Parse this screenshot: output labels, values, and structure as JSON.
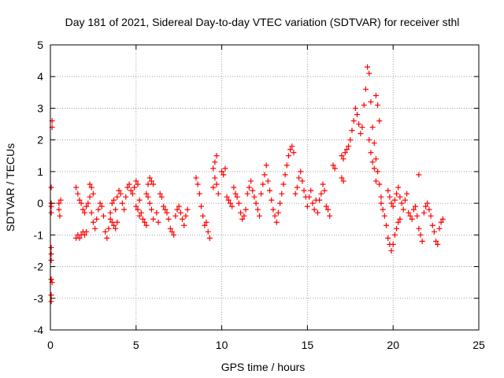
{
  "chart_data": {
    "type": "scatter",
    "title": "Day 181 of 2021, Sidereal Day-to-day VTEC variation (SDTVAR) for receiver sthl",
    "xlabel": "GPS time / hours",
    "ylabel": "SDTVAR / TECUs",
    "xlim": [
      0,
      25
    ],
    "ylim": [
      -4,
      5
    ],
    "xticks": [
      0,
      5,
      10,
      15,
      20,
      25
    ],
    "yticks": [
      -4,
      -3,
      -2,
      -1,
      0,
      1,
      2,
      3,
      4,
      5
    ],
    "xtick_labels": [
      "0",
      "5",
      "10",
      "15",
      "20",
      "25"
    ],
    "ytick_labels": [
      "-4",
      "-3",
      "-2",
      "-1",
      "0",
      "1",
      "2",
      "3",
      "4",
      "5"
    ],
    "grid": true,
    "marker": "plus",
    "color": "#ff0000",
    "series": [
      {
        "name": "sthl",
        "points": [
          [
            0.05,
            0.5
          ],
          [
            0.05,
            0.0
          ],
          [
            0.05,
            -0.1
          ],
          [
            0.05,
            -0.3
          ],
          [
            0.05,
            -1.4
          ],
          [
            0.05,
            -1.6
          ],
          [
            0.05,
            -1.8
          ],
          [
            0.05,
            -2.4
          ],
          [
            0.05,
            -2.9
          ],
          [
            0.05,
            -3.1
          ],
          [
            0.1,
            2.6
          ],
          [
            0.1,
            2.4
          ],
          [
            0.1,
            -2.5
          ],
          [
            0.5,
            0.0
          ],
          [
            0.5,
            -0.2
          ],
          [
            0.55,
            -0.4
          ],
          [
            0.6,
            0.1
          ],
          [
            1.5,
            -1.1
          ],
          [
            1.6,
            -1.0
          ],
          [
            1.7,
            -1.1
          ],
          [
            1.8,
            -1.0
          ],
          [
            1.9,
            -0.9
          ],
          [
            2.0,
            -1.0
          ],
          [
            2.1,
            -0.9
          ],
          [
            1.5,
            0.5
          ],
          [
            1.6,
            0.3
          ],
          [
            1.7,
            0.1
          ],
          [
            1.8,
            0.0
          ],
          [
            1.9,
            -0.2
          ],
          [
            2.0,
            -0.3
          ],
          [
            2.1,
            -0.1
          ],
          [
            2.2,
            0.0
          ],
          [
            2.3,
            0.2
          ],
          [
            2.4,
            -0.3
          ],
          [
            2.5,
            -0.6
          ],
          [
            2.6,
            -0.8
          ],
          [
            2.7,
            -0.5
          ],
          [
            2.3,
            0.6
          ],
          [
            2.4,
            0.5
          ],
          [
            2.5,
            0.3
          ],
          [
            2.8,
            -0.2
          ],
          [
            2.9,
            0.0
          ],
          [
            3.0,
            -0.1
          ],
          [
            3.1,
            -0.4
          ],
          [
            3.2,
            -0.9
          ],
          [
            3.3,
            -1.1
          ],
          [
            3.4,
            -0.8
          ],
          [
            3.5,
            -0.3
          ],
          [
            3.6,
            0.0
          ],
          [
            3.7,
            0.1
          ],
          [
            3.8,
            -0.2
          ],
          [
            3.9,
            0.2
          ],
          [
            4.0,
            0.4
          ],
          [
            4.1,
            0.3
          ],
          [
            3.5,
            -0.5
          ],
          [
            3.6,
            -0.6
          ],
          [
            3.7,
            -0.7
          ],
          [
            3.8,
            -0.8
          ],
          [
            3.9,
            -0.6
          ],
          [
            4.2,
            0.0
          ],
          [
            4.3,
            -0.2
          ],
          [
            4.4,
            0.2
          ],
          [
            4.5,
            0.5
          ],
          [
            4.6,
            0.6
          ],
          [
            4.7,
            0.4
          ],
          [
            4.8,
            0.3
          ],
          [
            4.9,
            0.5
          ],
          [
            5.0,
            0.7
          ],
          [
            5.1,
            0.6
          ],
          [
            5.2,
            0.1
          ],
          [
            5.3,
            -0.3
          ],
          [
            5.4,
            -0.5
          ],
          [
            5.5,
            -0.6
          ],
          [
            5.6,
            -0.7
          ],
          [
            5.0,
            -0.1
          ],
          [
            5.1,
            -0.2
          ],
          [
            5.2,
            -0.4
          ],
          [
            5.6,
            0.3
          ],
          [
            5.7,
            0.2
          ],
          [
            5.8,
            0.0
          ],
          [
            5.9,
            -0.2
          ],
          [
            6.0,
            -0.5
          ],
          [
            5.7,
            0.6
          ],
          [
            5.8,
            0.8
          ],
          [
            5.9,
            0.7
          ],
          [
            6.0,
            0.6
          ],
          [
            6.2,
            -0.3
          ],
          [
            6.3,
            -0.6
          ],
          [
            6.4,
            0.3
          ],
          [
            6.5,
            0.2
          ],
          [
            6.6,
            -0.1
          ],
          [
            6.7,
            -0.2
          ],
          [
            6.8,
            -0.3
          ],
          [
            6.9,
            -0.5
          ],
          [
            7.0,
            -0.8
          ],
          [
            7.1,
            -0.9
          ],
          [
            7.2,
            -1.0
          ],
          [
            7.3,
            -0.4
          ],
          [
            7.4,
            -0.2
          ],
          [
            7.5,
            -0.1
          ],
          [
            7.6,
            -0.3
          ],
          [
            7.7,
            -0.5
          ],
          [
            7.8,
            -0.7
          ],
          [
            7.9,
            -0.4
          ],
          [
            8.0,
            -0.2
          ],
          [
            8.5,
            0.8
          ],
          [
            8.6,
            0.6
          ],
          [
            8.7,
            0.3
          ],
          [
            8.8,
            -0.1
          ],
          [
            8.9,
            -0.4
          ],
          [
            9.0,
            -0.7
          ],
          [
            9.1,
            -0.6
          ],
          [
            9.2,
            -0.9
          ],
          [
            9.3,
            -1.1
          ],
          [
            9.5,
            0.5
          ],
          [
            9.6,
            0.8
          ],
          [
            9.7,
            0.6
          ],
          [
            9.8,
            0.3
          ],
          [
            9.5,
            1.1
          ],
          [
            9.6,
            1.3
          ],
          [
            9.7,
            1.5
          ],
          [
            10.0,
            1.0
          ],
          [
            10.1,
            0.9
          ],
          [
            10.2,
            1.1
          ],
          [
            10.3,
            0.2
          ],
          [
            10.4,
            0.1
          ],
          [
            10.5,
            0.0
          ],
          [
            10.6,
            -0.1
          ],
          [
            10.7,
            0.5
          ],
          [
            10.8,
            0.3
          ],
          [
            10.9,
            0.2
          ],
          [
            11.0,
            0.0
          ],
          [
            11.1,
            -0.3
          ],
          [
            11.2,
            -0.5
          ],
          [
            11.3,
            -0.4
          ],
          [
            11.4,
            -0.2
          ],
          [
            11.5,
            0.3
          ],
          [
            11.6,
            0.5
          ],
          [
            11.7,
            0.7
          ],
          [
            11.8,
            0.4
          ],
          [
            11.9,
            0.2
          ],
          [
            12.0,
            0.0
          ],
          [
            12.1,
            -0.2
          ],
          [
            12.2,
            -0.4
          ],
          [
            12.3,
            0.3
          ],
          [
            12.4,
            0.6
          ],
          [
            12.5,
            0.9
          ],
          [
            12.6,
            1.2
          ],
          [
            12.7,
            0.7
          ],
          [
            12.8,
            0.4
          ],
          [
            12.9,
            0.1
          ],
          [
            13.0,
            -0.2
          ],
          [
            13.1,
            -0.4
          ],
          [
            13.2,
            -0.6
          ],
          [
            13.3,
            -0.3
          ],
          [
            13.4,
            0.0
          ],
          [
            13.5,
            0.3
          ],
          [
            13.6,
            0.6
          ],
          [
            13.7,
            0.9
          ],
          [
            13.8,
            1.2
          ],
          [
            13.9,
            1.5
          ],
          [
            14.0,
            1.7
          ],
          [
            14.1,
            1.8
          ],
          [
            14.2,
            1.6
          ],
          [
            14.3,
            0.3
          ],
          [
            14.4,
            0.5
          ],
          [
            14.5,
            0.8
          ],
          [
            14.6,
            1.0
          ],
          [
            14.7,
            0.7
          ],
          [
            14.8,
            0.4
          ],
          [
            14.9,
            0.2
          ],
          [
            15.0,
            -0.1
          ],
          [
            15.1,
            0.2
          ],
          [
            15.2,
            0.4
          ],
          [
            15.3,
            0.0
          ],
          [
            15.4,
            -0.2
          ],
          [
            15.5,
            0.1
          ],
          [
            15.6,
            -0.3
          ],
          [
            15.7,
            0.1
          ],
          [
            15.8,
            0.3
          ],
          [
            15.9,
            0.6
          ],
          [
            16.0,
            0.4
          ],
          [
            16.1,
            -0.1
          ],
          [
            16.2,
            -0.2
          ],
          [
            16.3,
            -0.4
          ],
          [
            16.5,
            1.2
          ],
          [
            16.6,
            1.1
          ],
          [
            17.0,
            1.5
          ],
          [
            17.1,
            1.4
          ],
          [
            17.2,
            1.6
          ],
          [
            17.3,
            1.7
          ],
          [
            17.4,
            1.8
          ],
          [
            17.0,
            0.8
          ],
          [
            17.1,
            0.7
          ],
          [
            17.5,
            2.0
          ],
          [
            17.6,
            2.3
          ],
          [
            17.7,
            2.6
          ],
          [
            17.8,
            3.0
          ],
          [
            17.9,
            2.8
          ],
          [
            18.0,
            2.5
          ],
          [
            18.1,
            2.2
          ],
          [
            18.2,
            2.4
          ],
          [
            18.3,
            3.1
          ],
          [
            18.4,
            3.6
          ],
          [
            18.5,
            4.3
          ],
          [
            18.6,
            4.1
          ],
          [
            18.7,
            3.2
          ],
          [
            18.8,
            2.4
          ],
          [
            18.9,
            1.9
          ],
          [
            19.0,
            1.4
          ],
          [
            19.1,
            1.0
          ],
          [
            19.2,
            0.6
          ],
          [
            19.3,
            0.2
          ],
          [
            18.6,
            2.0
          ],
          [
            18.7,
            1.6
          ],
          [
            18.8,
            1.3
          ],
          [
            18.9,
            1.1
          ],
          [
            19.0,
            0.7
          ],
          [
            19.0,
            3.4
          ],
          [
            19.1,
            3.1
          ],
          [
            19.2,
            2.6
          ],
          [
            19.3,
            0.0
          ],
          [
            19.4,
            -0.2
          ],
          [
            19.5,
            -0.4
          ],
          [
            19.6,
            -0.7
          ],
          [
            19.7,
            -1.1
          ],
          [
            19.8,
            -1.3
          ],
          [
            19.9,
            -1.5
          ],
          [
            20.0,
            -1.3
          ],
          [
            20.1,
            -1.0
          ],
          [
            20.2,
            -0.8
          ],
          [
            20.3,
            -0.6
          ],
          [
            20.4,
            -0.5
          ],
          [
            19.7,
            0.4
          ],
          [
            19.8,
            0.2
          ],
          [
            19.9,
            0.0
          ],
          [
            20.0,
            -0.1
          ],
          [
            20.1,
            0.1
          ],
          [
            20.2,
            0.3
          ],
          [
            20.3,
            0.5
          ],
          [
            20.4,
            0.2
          ],
          [
            20.5,
            0.0
          ],
          [
            20.6,
            -0.2
          ],
          [
            20.7,
            0.1
          ],
          [
            20.8,
            0.3
          ],
          [
            20.9,
            -0.3
          ],
          [
            21.0,
            -0.4
          ],
          [
            21.1,
            -0.5
          ],
          [
            21.2,
            -0.2
          ],
          [
            21.3,
            -0.1
          ],
          [
            21.4,
            -0.4
          ],
          [
            21.5,
            -0.8
          ],
          [
            21.6,
            -1.0
          ],
          [
            21.7,
            -1.2
          ],
          [
            21.5,
            0.9
          ],
          [
            21.8,
            -0.3
          ],
          [
            21.9,
            -0.1
          ],
          [
            22.0,
            0.0
          ],
          [
            22.1,
            -0.2
          ],
          [
            22.2,
            -0.4
          ],
          [
            22.3,
            -0.7
          ],
          [
            22.4,
            -0.9
          ],
          [
            22.5,
            -1.2
          ],
          [
            22.6,
            -1.3
          ],
          [
            22.7,
            -0.8
          ],
          [
            22.8,
            -0.6
          ],
          [
            22.9,
            -0.5
          ]
        ]
      }
    ]
  }
}
